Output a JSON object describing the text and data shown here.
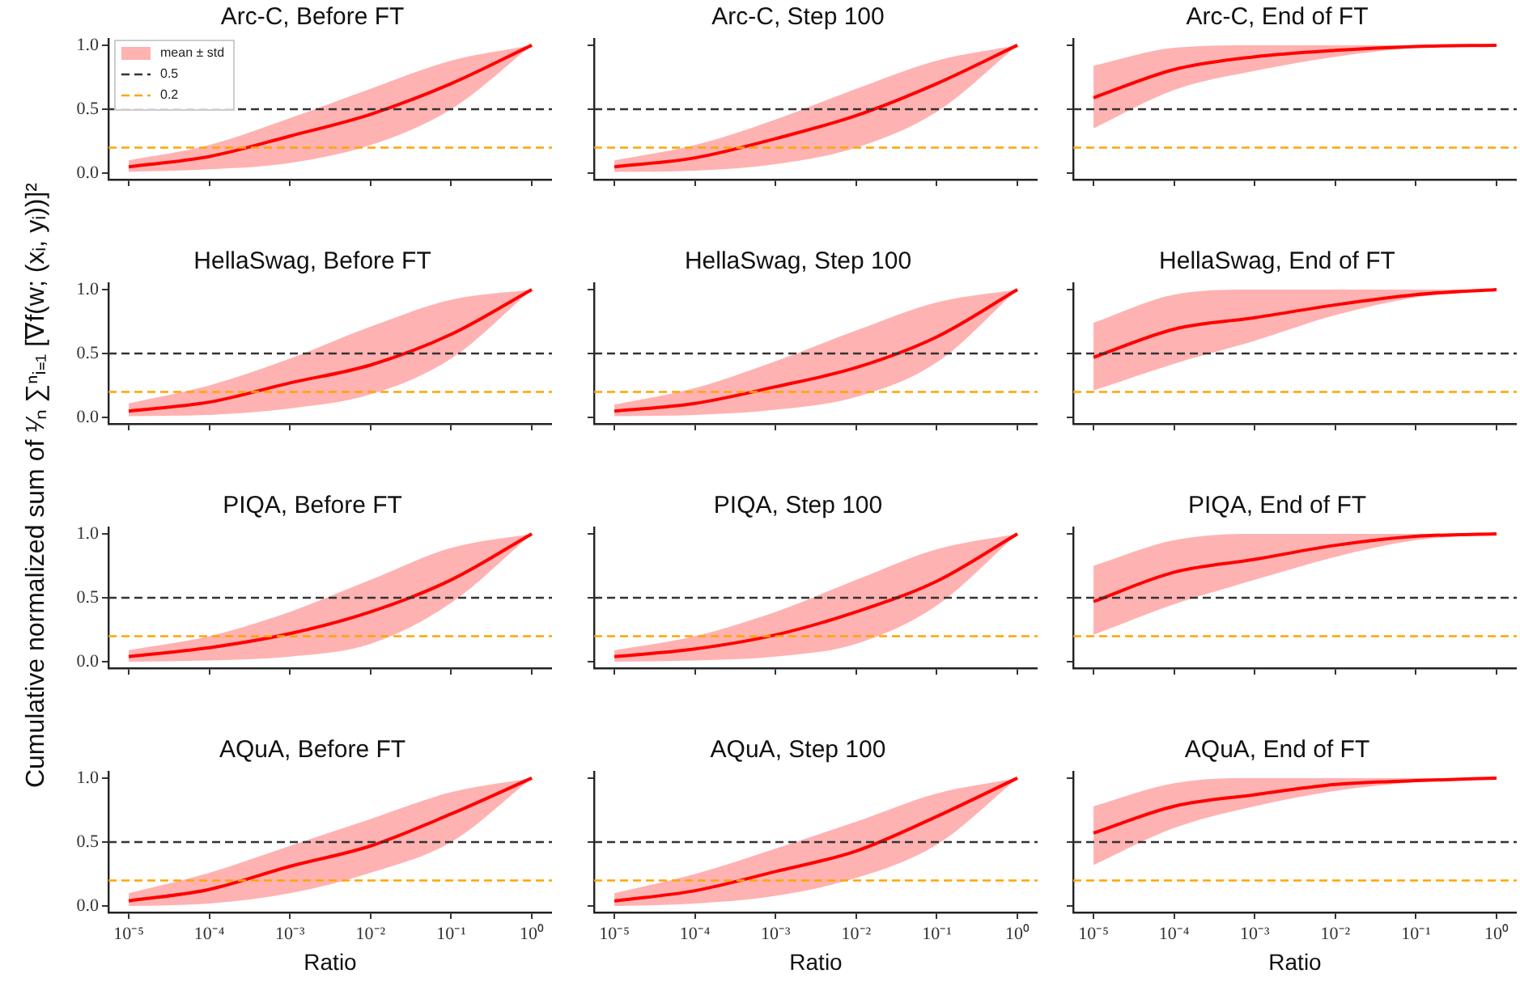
{
  "chart_data": [
    {
      "type": "line",
      "title": "Arc-C, Before FT",
      "ylabel": "Cumulative normalized sum of ¹⁄ₙ ∑ⁿᵢ₌₁ [∇f(w; (xᵢ, yᵢ))]²",
      "x": [
        1e-05,
        0.0001,
        0.001,
        0.01,
        0.1,
        1
      ],
      "log": "x",
      "xlim": [
        5.6e-06,
        1.78
      ],
      "xticks": [
        {
          "value": 1e-05,
          "label": null
        },
        {
          "value": 0.0001,
          "label": null
        },
        {
          "value": 0.001,
          "label": null
        },
        {
          "value": 0.01,
          "label": null
        },
        {
          "value": 0.1,
          "label": null
        },
        {
          "value": 1,
          "label": null
        }
      ],
      "ylim": [
        -0.05,
        1.05
      ],
      "yticks": [
        {
          "value": 0,
          "label": "0.0"
        },
        {
          "value": 0.5,
          "label": "0.5"
        },
        {
          "value": 1,
          "label": "1.0"
        }
      ],
      "tick_labels": "y",
      "marker": "none",
      "legend": "top left",
      "series": [
        {
          "name": "mean ± std",
          "color": "#ff0000",
          "values": [
            0.05,
            0.13,
            0.29,
            0.46,
            0.7,
            1.0
          ],
          "lower": [
            0.01,
            0.03,
            0.08,
            0.22,
            0.5,
            1.0
          ],
          "upper": [
            0.1,
            0.22,
            0.43,
            0.66,
            0.88,
            1.0
          ]
        }
      ],
      "ref_lines": [
        {
          "axis": "y",
          "value": 0.5,
          "label": "0.5",
          "color": "#333333",
          "line_style": "dashed"
        },
        {
          "axis": "y",
          "value": 0.2,
          "label": "0.2",
          "color": "#ffa500",
          "line_style": "dashed"
        }
      ]
    },
    {
      "type": "line",
      "title": "Arc-C, Step 100",
      "x": [
        1e-05,
        0.0001,
        0.001,
        0.01,
        0.1,
        1
      ],
      "log": "x",
      "xlim": [
        5.6e-06,
        1.78
      ],
      "xticks": [
        {
          "value": 1e-05,
          "label": null
        },
        {
          "value": 0.0001,
          "label": null
        },
        {
          "value": 0.001,
          "label": null
        },
        {
          "value": 0.01,
          "label": null
        },
        {
          "value": 0.1,
          "label": null
        },
        {
          "value": 1,
          "label": null
        }
      ],
      "ylim": [
        -0.05,
        1.05
      ],
      "yticks": [
        {
          "value": 0,
          "label": null
        },
        {
          "value": 0.5,
          "label": null
        },
        {
          "value": 1,
          "label": null
        }
      ],
      "tick_labels": false,
      "marker": "none",
      "series": [
        {
          "color": "#ff0000",
          "values": [
            0.05,
            0.12,
            0.27,
            0.45,
            0.7,
            1.0
          ],
          "lower": [
            0.01,
            0.02,
            0.07,
            0.2,
            0.48,
            1.0
          ],
          "upper": [
            0.1,
            0.22,
            0.42,
            0.66,
            0.88,
            1.0
          ]
        }
      ],
      "ref_lines": [
        {
          "axis": "y",
          "value": 0.5,
          "color": "#333333",
          "line_style": "dashed"
        },
        {
          "axis": "y",
          "value": 0.2,
          "color": "#ffa500",
          "line_style": "dashed"
        }
      ]
    },
    {
      "type": "line",
      "title": "Arc-C, End of FT",
      "x": [
        1e-05,
        0.0001,
        0.001,
        0.01,
        0.1,
        1
      ],
      "log": "x",
      "xlim": [
        5.6e-06,
        1.78
      ],
      "xticks": [
        {
          "value": 1e-05,
          "label": null
        },
        {
          "value": 0.0001,
          "label": null
        },
        {
          "value": 0.001,
          "label": null
        },
        {
          "value": 0.01,
          "label": null
        },
        {
          "value": 0.1,
          "label": null
        },
        {
          "value": 1,
          "label": null
        }
      ],
      "ylim": [
        -0.05,
        1.05
      ],
      "yticks": [
        {
          "value": 0,
          "label": null
        },
        {
          "value": 0.5,
          "label": null
        },
        {
          "value": 1,
          "label": null
        }
      ],
      "tick_labels": false,
      "marker": "none",
      "series": [
        {
          "color": "#ff0000",
          "values": [
            0.59,
            0.81,
            0.91,
            0.96,
            0.99,
            1.0
          ],
          "lower": [
            0.35,
            0.65,
            0.8,
            0.91,
            0.98,
            1.0
          ],
          "upper": [
            0.84,
            0.98,
            1.0,
            1.0,
            1.0,
            1.0
          ]
        }
      ],
      "ref_lines": [
        {
          "axis": "y",
          "value": 0.5,
          "color": "#333333",
          "line_style": "dashed"
        },
        {
          "axis": "y",
          "value": 0.2,
          "color": "#ffa500",
          "line_style": "dashed"
        }
      ]
    },
    {
      "type": "line",
      "title": "HellaSwag, Before FT",
      "x": [
        1e-05,
        0.0001,
        0.001,
        0.01,
        0.1,
        1
      ],
      "log": "x",
      "xlim": [
        5.6e-06,
        1.78
      ],
      "xticks": [
        {
          "value": 1e-05,
          "label": null
        },
        {
          "value": 0.0001,
          "label": null
        },
        {
          "value": 0.001,
          "label": null
        },
        {
          "value": 0.01,
          "label": null
        },
        {
          "value": 0.1,
          "label": null
        },
        {
          "value": 1,
          "label": null
        }
      ],
      "ylim": [
        -0.05,
        1.05
      ],
      "yticks": [
        {
          "value": 0,
          "label": "0.0"
        },
        {
          "value": 0.5,
          "label": "0.5"
        },
        {
          "value": 1,
          "label": "1.0"
        }
      ],
      "tick_labels": "y",
      "marker": "none",
      "series": [
        {
          "color": "#ff0000",
          "values": [
            0.05,
            0.12,
            0.27,
            0.41,
            0.65,
            1
          ],
          "lower": [
            0.01,
            0.02,
            0.07,
            0.18,
            0.46,
            1
          ],
          "upper": [
            0.11,
            0.25,
            0.46,
            0.71,
            0.92,
            1
          ]
        }
      ],
      "ref_lines": [
        {
          "axis": "y",
          "value": 0.5,
          "color": "#333333",
          "line_style": "dashed"
        },
        {
          "axis": "y",
          "value": 0.2,
          "color": "#ffa500",
          "line_style": "dashed"
        }
      ]
    },
    {
      "type": "line",
      "title": "HellaSwag, Step 100",
      "x": [
        1e-05,
        0.0001,
        0.001,
        0.01,
        0.1,
        1
      ],
      "log": "x",
      "xlim": [
        5.6e-06,
        1.78
      ],
      "xticks": [
        {
          "value": 1e-05,
          "label": null
        },
        {
          "value": 0.0001,
          "label": null
        },
        {
          "value": 0.001,
          "label": null
        },
        {
          "value": 0.01,
          "label": null
        },
        {
          "value": 0.1,
          "label": null
        },
        {
          "value": 1,
          "label": null
        }
      ],
      "ylim": [
        -0.05,
        1.05
      ],
      "yticks": [
        {
          "value": 0,
          "label": null
        },
        {
          "value": 0.5,
          "label": null
        },
        {
          "value": 1,
          "label": null
        }
      ],
      "tick_labels": false,
      "marker": "none",
      "series": [
        {
          "color": "#ff0000",
          "values": [
            0.05,
            0.11,
            0.24,
            0.39,
            0.63,
            1
          ],
          "lower": [
            0.01,
            0.02,
            0.06,
            0.16,
            0.43,
            1
          ],
          "upper": [
            0.1,
            0.23,
            0.44,
            0.68,
            0.9,
            1
          ]
        }
      ],
      "ref_lines": [
        {
          "axis": "y",
          "value": 0.5,
          "color": "#333333",
          "line_style": "dashed"
        },
        {
          "axis": "y",
          "value": 0.2,
          "color": "#ffa500",
          "line_style": "dashed"
        }
      ]
    },
    {
      "type": "line",
      "title": "HellaSwag, End of FT",
      "x": [
        1e-05,
        0.0001,
        0.001,
        0.01,
        0.1,
        1
      ],
      "log": "x",
      "xlim": [
        5.6e-06,
        1.78
      ],
      "xticks": [
        {
          "value": 1e-05,
          "label": null
        },
        {
          "value": 0.0001,
          "label": null
        },
        {
          "value": 0.001,
          "label": null
        },
        {
          "value": 0.01,
          "label": null
        },
        {
          "value": 0.1,
          "label": null
        },
        {
          "value": 1,
          "label": null
        }
      ],
      "ylim": [
        -0.05,
        1.05
      ],
      "yticks": [
        {
          "value": 0,
          "label": null
        },
        {
          "value": 0.5,
          "label": null
        },
        {
          "value": 1,
          "label": null
        }
      ],
      "tick_labels": false,
      "marker": "none",
      "series": [
        {
          "color": "#ff0000",
          "values": [
            0.47,
            0.69,
            0.78,
            0.88,
            0.96,
            1
          ],
          "lower": [
            0.21,
            0.42,
            0.6,
            0.8,
            0.94,
            1
          ],
          "upper": [
            0.74,
            0.96,
            1,
            1,
            1,
            1
          ]
        }
      ],
      "ref_lines": [
        {
          "axis": "y",
          "value": 0.5,
          "color": "#333333",
          "line_style": "dashed"
        },
        {
          "axis": "y",
          "value": 0.2,
          "color": "#ffa500",
          "line_style": "dashed"
        }
      ]
    },
    {
      "type": "line",
      "title": "PIQA, Before FT",
      "x": [
        1e-05,
        0.0001,
        0.001,
        0.01,
        0.1,
        1
      ],
      "log": "x",
      "xlim": [
        5.6e-06,
        1.78
      ],
      "xticks": [
        {
          "value": 1e-05,
          "label": null
        },
        {
          "value": 0.0001,
          "label": null
        },
        {
          "value": 0.001,
          "label": null
        },
        {
          "value": 0.01,
          "label": null
        },
        {
          "value": 0.1,
          "label": null
        },
        {
          "value": 1,
          "label": null
        }
      ],
      "ylim": [
        -0.05,
        1.05
      ],
      "yticks": [
        {
          "value": 0,
          "label": "0.0"
        },
        {
          "value": 0.5,
          "label": "0.5"
        },
        {
          "value": 1,
          "label": "1.0"
        }
      ],
      "tick_labels": "y",
      "marker": "none",
      "series": [
        {
          "color": "#ff0000",
          "values": [
            0.04,
            0.11,
            0.22,
            0.39,
            0.64,
            1
          ],
          "lower": [
            0.0,
            0.01,
            0.04,
            0.14,
            0.46,
            1
          ],
          "upper": [
            0.09,
            0.2,
            0.39,
            0.64,
            0.89,
            1
          ]
        }
      ],
      "ref_lines": [
        {
          "axis": "y",
          "value": 0.5,
          "color": "#333333",
          "line_style": "dashed"
        },
        {
          "axis": "y",
          "value": 0.2,
          "color": "#ffa500",
          "line_style": "dashed"
        }
      ]
    },
    {
      "type": "line",
      "title": "PIQA, Step 100",
      "x": [
        1e-05,
        0.0001,
        0.001,
        0.01,
        0.1,
        1
      ],
      "log": "x",
      "xlim": [
        5.6e-06,
        1.78
      ],
      "xticks": [
        {
          "value": 1e-05,
          "label": null
        },
        {
          "value": 0.0001,
          "label": null
        },
        {
          "value": 0.001,
          "label": null
        },
        {
          "value": 0.01,
          "label": null
        },
        {
          "value": 0.1,
          "label": null
        },
        {
          "value": 1,
          "label": null
        }
      ],
      "ylim": [
        -0.05,
        1.05
      ],
      "yticks": [
        {
          "value": 0,
          "label": null
        },
        {
          "value": 0.5,
          "label": null
        },
        {
          "value": 1,
          "label": null
        }
      ],
      "tick_labels": false,
      "marker": "none",
      "series": [
        {
          "color": "#ff0000",
          "values": [
            0.04,
            0.1,
            0.21,
            0.39,
            0.63,
            1
          ],
          "lower": [
            0.0,
            0.01,
            0.04,
            0.14,
            0.44,
            1
          ],
          "upper": [
            0.09,
            0.2,
            0.39,
            0.64,
            0.88,
            1
          ]
        }
      ],
      "ref_lines": [
        {
          "axis": "y",
          "value": 0.5,
          "color": "#333333",
          "line_style": "dashed"
        },
        {
          "axis": "y",
          "value": 0.2,
          "color": "#ffa500",
          "line_style": "dashed"
        }
      ]
    },
    {
      "type": "line",
      "title": "PIQA, End of FT",
      "x": [
        1e-05,
        0.0001,
        0.001,
        0.01,
        0.1,
        1
      ],
      "log": "x",
      "xlim": [
        5.6e-06,
        1.78
      ],
      "xticks": [
        {
          "value": 1e-05,
          "label": null
        },
        {
          "value": 0.0001,
          "label": null
        },
        {
          "value": 0.001,
          "label": null
        },
        {
          "value": 0.01,
          "label": null
        },
        {
          "value": 0.1,
          "label": null
        },
        {
          "value": 1,
          "label": null
        }
      ],
      "ylim": [
        -0.05,
        1.05
      ],
      "yticks": [
        {
          "value": 0,
          "label": null
        },
        {
          "value": 0.5,
          "label": null
        },
        {
          "value": 1,
          "label": null
        }
      ],
      "tick_labels": false,
      "marker": "none",
      "series": [
        {
          "color": "#ff0000",
          "values": [
            0.47,
            0.7,
            0.8,
            0.91,
            0.98,
            1
          ],
          "lower": [
            0.21,
            0.45,
            0.64,
            0.82,
            0.95,
            1
          ],
          "upper": [
            0.75,
            0.95,
            1,
            1,
            1,
            1
          ]
        }
      ],
      "ref_lines": [
        {
          "axis": "y",
          "value": 0.5,
          "color": "#333333",
          "line_style": "dashed"
        },
        {
          "axis": "y",
          "value": 0.2,
          "color": "#ffa500",
          "line_style": "dashed"
        }
      ]
    },
    {
      "type": "line",
      "title": "AQuA, Before FT",
      "xlabel": "Ratio",
      "x": [
        1e-05,
        0.0001,
        0.001,
        0.01,
        0.1,
        1
      ],
      "log": "x",
      "xlim": [
        5.6e-06,
        1.78
      ],
      "xticks": [
        {
          "value": 1e-05,
          "label": "10⁻⁵"
        },
        {
          "value": 0.0001,
          "label": "10⁻⁴"
        },
        {
          "value": 0.001,
          "label": "10⁻³"
        },
        {
          "value": 0.01,
          "label": "10⁻²"
        },
        {
          "value": 0.1,
          "label": "10⁻¹"
        },
        {
          "value": 1,
          "label": "10⁰"
        }
      ],
      "ylim": [
        -0.05,
        1.05
      ],
      "yticks": [
        {
          "value": 0,
          "label": "0.0"
        },
        {
          "value": 0.5,
          "label": "0.5"
        },
        {
          "value": 1,
          "label": "1.0"
        }
      ],
      "marker": "none",
      "series": [
        {
          "color": "#ff0000",
          "values": [
            0.04,
            0.13,
            0.31,
            0.47,
            0.72,
            1
          ],
          "lower": [
            0.0,
            0.02,
            0.1,
            0.26,
            0.5,
            1
          ],
          "upper": [
            0.1,
            0.26,
            0.47,
            0.68,
            0.89,
            1
          ]
        }
      ],
      "ref_lines": [
        {
          "axis": "y",
          "value": 0.5,
          "color": "#333333",
          "line_style": "dashed"
        },
        {
          "axis": "y",
          "value": 0.2,
          "color": "#ffa500",
          "line_style": "dashed"
        }
      ]
    },
    {
      "type": "line",
      "title": "AQuA, Step 100",
      "xlabel": "Ratio",
      "x": [
        1e-05,
        0.0001,
        0.001,
        0.01,
        0.1,
        1
      ],
      "log": "x",
      "xlim": [
        5.6e-06,
        1.78
      ],
      "xticks": [
        {
          "value": 1e-05,
          "label": "10⁻⁵"
        },
        {
          "value": 0.0001,
          "label": "10⁻⁴"
        },
        {
          "value": 0.001,
          "label": "10⁻³"
        },
        {
          "value": 0.01,
          "label": "10⁻²"
        },
        {
          "value": 0.1,
          "label": "10⁻¹"
        },
        {
          "value": 1,
          "label": "10⁰"
        }
      ],
      "ylim": [
        -0.05,
        1.05
      ],
      "yticks": [
        {
          "value": 0,
          "label": null
        },
        {
          "value": 0.5,
          "label": null
        },
        {
          "value": 1,
          "label": null
        }
      ],
      "tick_labels": "x",
      "marker": "none",
      "series": [
        {
          "color": "#ff0000",
          "values": [
            0.04,
            0.12,
            0.27,
            0.43,
            0.7,
            1
          ],
          "lower": [
            0.0,
            0.02,
            0.08,
            0.22,
            0.48,
            1
          ],
          "upper": [
            0.1,
            0.25,
            0.45,
            0.66,
            0.88,
            1
          ]
        }
      ],
      "ref_lines": [
        {
          "axis": "y",
          "value": 0.5,
          "color": "#333333",
          "line_style": "dashed"
        },
        {
          "axis": "y",
          "value": 0.2,
          "color": "#ffa500",
          "line_style": "dashed"
        }
      ]
    },
    {
      "type": "line",
      "title": "AQuA, End of FT",
      "xlabel": "Ratio",
      "x": [
        1e-05,
        0.0001,
        0.001,
        0.01,
        0.1,
        1
      ],
      "log": "x",
      "xlim": [
        5.6e-06,
        1.78
      ],
      "xticks": [
        {
          "value": 1e-05,
          "label": "10⁻⁵"
        },
        {
          "value": 0.0001,
          "label": "10⁻⁴"
        },
        {
          "value": 0.001,
          "label": "10⁻³"
        },
        {
          "value": 0.01,
          "label": "10⁻²"
        },
        {
          "value": 0.1,
          "label": "10⁻¹"
        },
        {
          "value": 1,
          "label": "10⁰"
        }
      ],
      "ylim": [
        -0.05,
        1.05
      ],
      "yticks": [
        {
          "value": 0,
          "label": null
        },
        {
          "value": 0.5,
          "label": null
        },
        {
          "value": 1,
          "label": null
        }
      ],
      "tick_labels": "x",
      "marker": "none",
      "series": [
        {
          "color": "#ff0000",
          "values": [
            0.57,
            0.78,
            0.87,
            0.95,
            0.98,
            1
          ],
          "lower": [
            0.32,
            0.61,
            0.78,
            0.9,
            0.97,
            1
          ],
          "upper": [
            0.78,
            0.96,
            1,
            1,
            1,
            1
          ]
        }
      ],
      "ref_lines": [
        {
          "axis": "y",
          "value": 0.5,
          "color": "#333333",
          "line_style": "dashed"
        },
        {
          "axis": "y",
          "value": 0.2,
          "color": "#ffa500",
          "line_style": "dashed"
        }
      ]
    }
  ]
}
